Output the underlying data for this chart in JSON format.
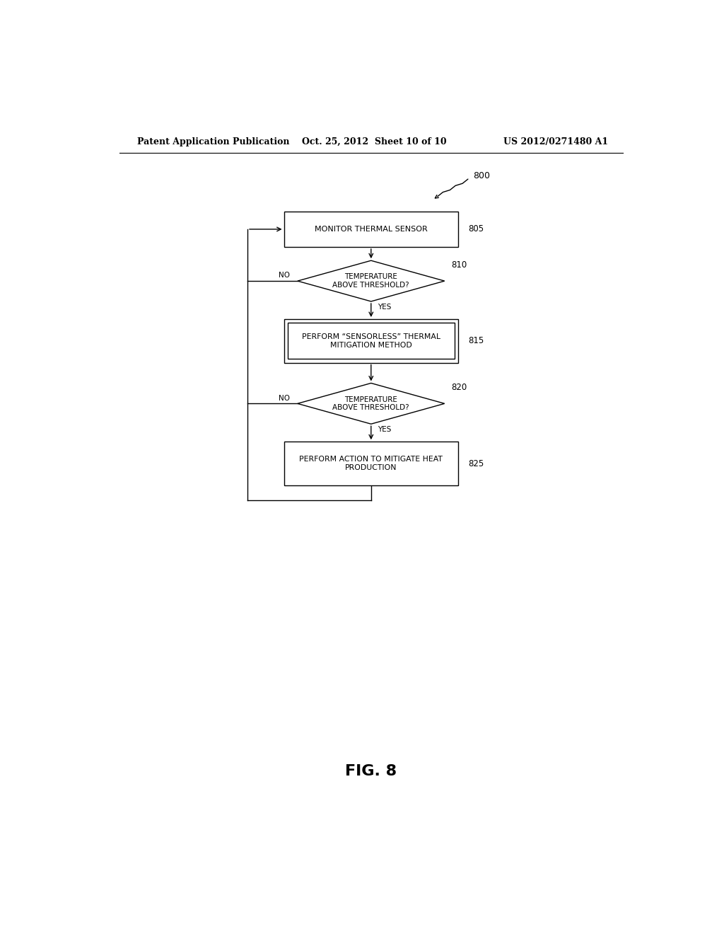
{
  "bg_color": "#ffffff",
  "header_left": "Patent Application Publication",
  "header_mid": "Oct. 25, 2012  Sheet 10 of 10",
  "header_right": "US 2012/0271480 A1",
  "fig_label": "FIG. 8",
  "diagram_label": "800",
  "box_805_label": "MONITOR THERMAL SENSOR",
  "box_815_label": "PERFORM “SENSORLESS” THERMAL\nMITIGATION METHOD",
  "box_825_label": "PERFORM ACTION TO MITIGATE HEAT\nPRODUCTION",
  "diamond_810_label": "TEMPERATURE\nABOVE THRESHOLD?",
  "diamond_820_label": "TEMPERATURE\nABOVE THRESHOLD?",
  "id_805": "805",
  "id_810": "810",
  "id_815": "815",
  "id_820": "820",
  "id_825": "825"
}
